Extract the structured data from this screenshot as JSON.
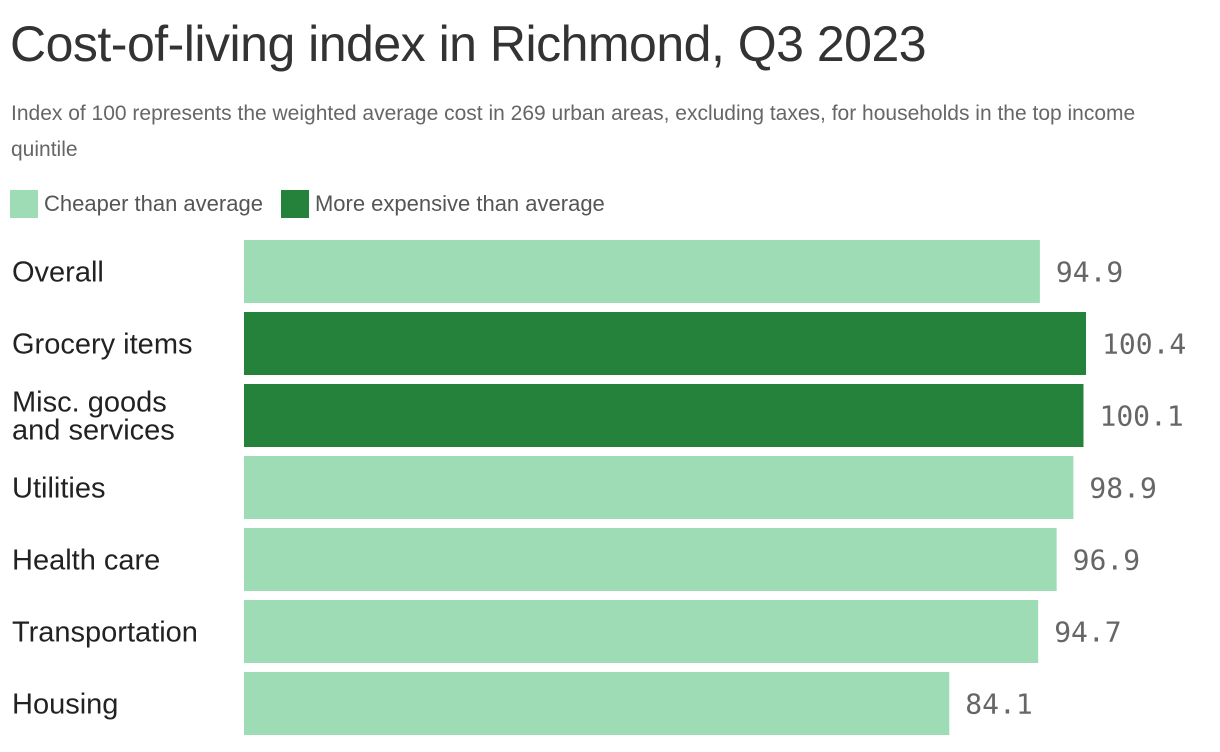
{
  "title": "Cost-of-living index in Richmond, Q3 2023",
  "subtitle": "Index of 100 represents the weighted average cost in 269 urban areas, excluding taxes, for households in the top income quintile",
  "colors": {
    "cheaper": "#9edcb5",
    "more_expensive": "#25823a"
  },
  "legend": [
    {
      "label": "Cheaper than average",
      "color": "#9edcb5"
    },
    {
      "label": "More expensive than average",
      "color": "#25823a"
    }
  ],
  "chart_data": {
    "type": "bar",
    "orientation": "horizontal",
    "title": "Cost-of-living index in Richmond, Q3 2023",
    "subtitle": "Index of 100 represents the weighted average cost in 269 urban areas, excluding taxes, for households in the top income quintile",
    "categories": [
      [
        "Overall"
      ],
      [
        "Grocery items"
      ],
      [
        "Misc. goods",
        "and services"
      ],
      [
        "Utilities"
      ],
      [
        "Health care"
      ],
      [
        "Transportation"
      ],
      [
        "Housing"
      ]
    ],
    "values": [
      94.9,
      100.4,
      100.1,
      98.9,
      96.9,
      94.7,
      84.1
    ],
    "value_labels": [
      "94.9",
      "100.4",
      "100.1",
      "98.9",
      "96.9",
      "94.7",
      "84.1"
    ],
    "series_groups": [
      "Cheaper than average",
      "More expensive than average",
      "More expensive than average",
      "Cheaper than average",
      "Cheaper than average",
      "Cheaper than average",
      "Cheaper than average"
    ],
    "xlim": [
      0,
      100.4
    ],
    "grid": false,
    "legend_position": "top-left"
  }
}
